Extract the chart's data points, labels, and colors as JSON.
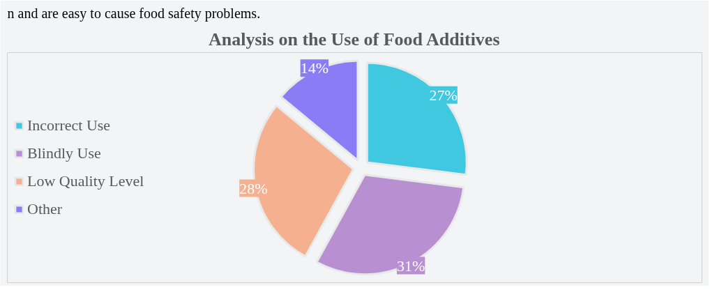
{
  "chart_data": {
    "type": "pie",
    "title": "Analysis on the Use of Food Additives",
    "annotations": [
      "n and are easy to cause food safety problems."
    ],
    "categories": [
      "Incorrect Use",
      "Blindly Use",
      "Low Quality Level",
      "Other"
    ],
    "values": [
      27,
      31,
      28,
      14
    ],
    "colors": [
      "#40c8e0",
      "#b88fd0",
      "#f5b090",
      "#8a7cf5"
    ],
    "value_labels": [
      "27%",
      "31%",
      "28%",
      "14%"
    ],
    "legend": "left"
  }
}
